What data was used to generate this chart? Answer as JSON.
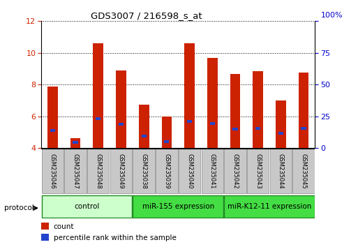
{
  "title": "GDS3007 / 216598_s_at",
  "samples": [
    "GSM235046",
    "GSM235047",
    "GSM235048",
    "GSM235049",
    "GSM235038",
    "GSM235039",
    "GSM235040",
    "GSM235041",
    "GSM235042",
    "GSM235043",
    "GSM235044",
    "GSM235045"
  ],
  "bar_values": [
    7.9,
    4.65,
    10.6,
    8.9,
    6.75,
    6.0,
    10.6,
    9.7,
    8.65,
    8.85,
    7.0,
    8.75
  ],
  "blue_marker_values": [
    5.1,
    4.35,
    5.85,
    5.5,
    4.75,
    4.4,
    5.7,
    5.55,
    5.2,
    5.25,
    4.95,
    5.25
  ],
  "ymin": 4,
  "ymax": 12,
  "yticks_left": [
    4,
    6,
    8,
    10,
    12
  ],
  "yticks_right": [
    0,
    25,
    50,
    75,
    100
  ],
  "bar_color": "#cc2200",
  "blue_color": "#2244cc",
  "bar_width": 0.45,
  "group_spans": [
    [
      0,
      3,
      "control",
      "#ccffcc"
    ],
    [
      4,
      7,
      "miR-155 expression",
      "#44dd44"
    ],
    [
      8,
      11,
      "miR-K12-11 expression",
      "#44dd44"
    ]
  ],
  "legend_count_color": "#cc2200",
  "legend_percentile_color": "#2244cc",
  "protocol_label": "protocol",
  "tick_label_color_left": "#cc2200",
  "tick_label_color_right": "#0000cc",
  "grid_color": "#000000",
  "axis_color": "#000000",
  "sample_box_color": "#c8c8c8",
  "sample_box_edge": "#888888"
}
